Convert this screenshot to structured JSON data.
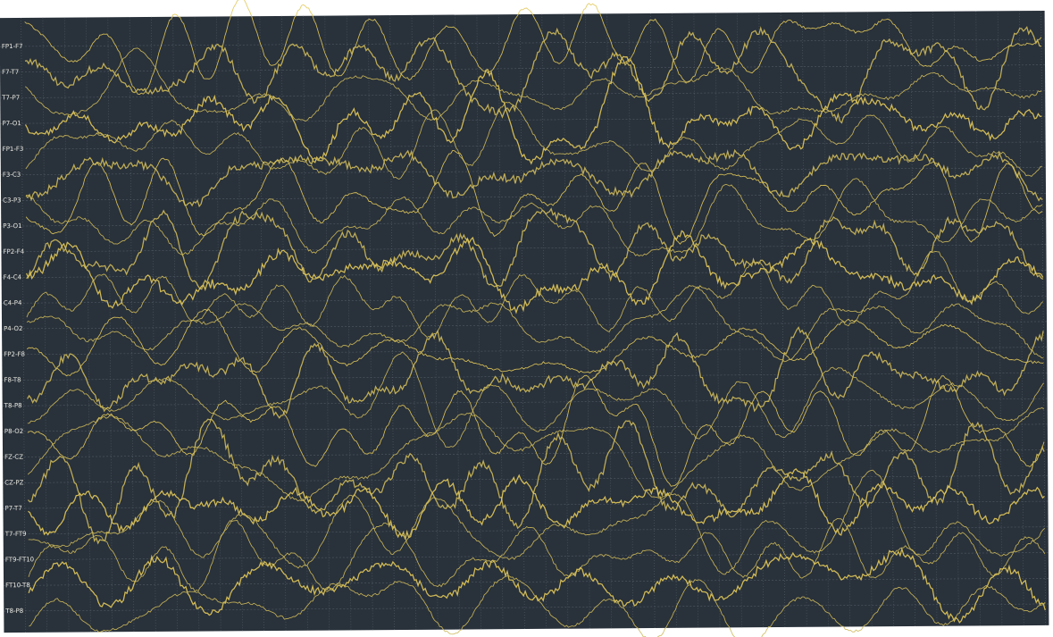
{
  "channels": [
    "FP1-F7",
    "F7-T7",
    "T7-P7",
    "P7-O1",
    "FP1-F3",
    "F3-C3",
    "C3-P3",
    "P3-O1",
    "FP2-F4",
    "F4-C4",
    "C4-P4",
    "P4-O2",
    "FP2-F8",
    "F8-T8",
    "T8-P8",
    "P8-O2",
    "FZ-CZ",
    "CZ-PZ",
    "P7-T7",
    "T7-FT9",
    "FT9-FT10",
    "FT10-T8",
    "T8-P8"
  ]
}
